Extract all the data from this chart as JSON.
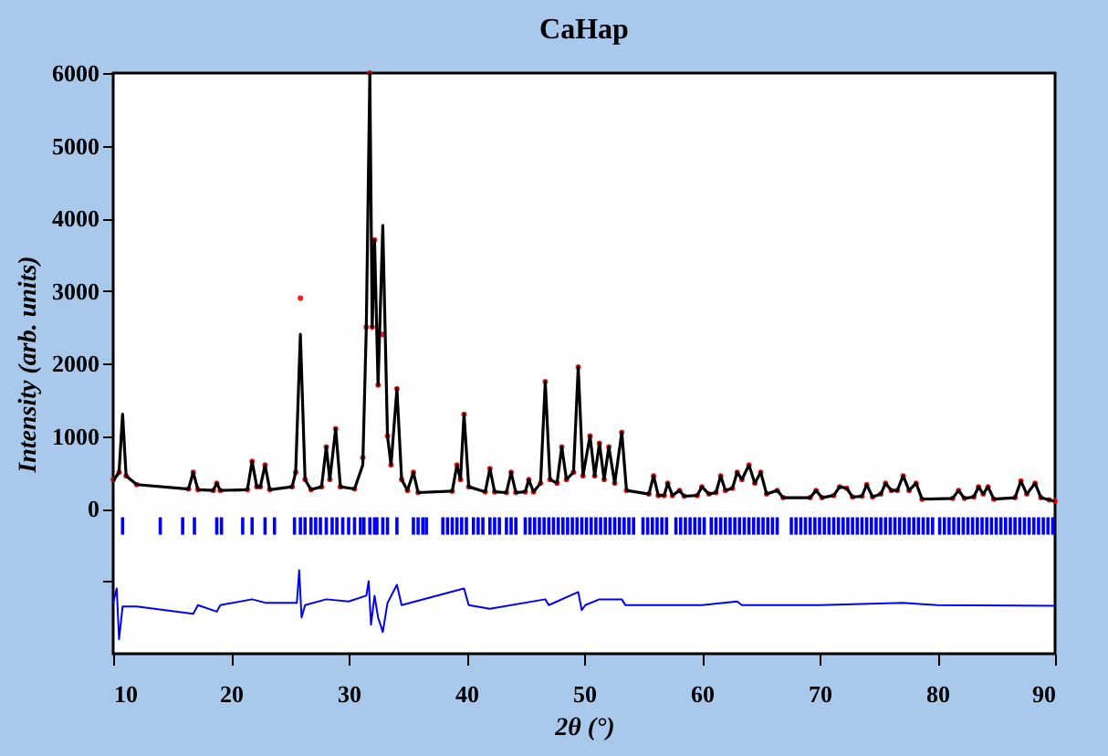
{
  "chart_data": {
    "type": "scatter",
    "title": "CaHap",
    "xlabel": "2θ (°)",
    "ylabel": "Intensity (arb. units)",
    "xlim": [
      10,
      90
    ],
    "xticks": [
      10,
      20,
      30,
      40,
      50,
      60,
      70,
      80,
      90
    ],
    "ylim": [
      -2000,
      6000
    ],
    "yticks": [
      {
        "value": -1000,
        "label": null
      },
      0,
      1000,
      2000,
      3000,
      4000,
      5000,
      6000
    ],
    "grid": false,
    "series": [
      {
        "color": "#ff0000",
        "marker": "circle",
        "x": [
          10,
          10.5,
          10.8,
          11.1,
          12,
          16.4,
          16.8,
          17.2,
          18.5,
          18.8,
          19.1,
          21.4,
          21.8,
          22.2,
          22.5,
          22.9,
          23.3,
          25.2,
          25.5,
          25.9,
          26.3,
          26.8,
          27.7,
          28.1,
          28.4,
          28.9,
          29.3,
          30.5,
          31.2,
          31.5,
          31.8,
          32.0,
          32.2,
          32.5,
          32.9,
          33.3,
          33.6,
          34.1,
          34.5,
          35.0,
          35.5,
          35.9,
          38.8,
          39.2,
          39.5,
          39.8,
          40.2,
          41.6,
          42.0,
          42.4,
          43.4,
          43.8,
          44.2,
          45.0,
          45.3,
          45.7,
          46.3,
          46.7,
          47.1,
          47.7,
          48.1,
          48.5,
          49.1,
          49.5,
          49.9,
          50.5,
          50.9,
          51.3,
          51.7,
          52.1,
          52.6,
          53.2,
          53.6,
          55.5,
          55.9,
          56.3,
          56.8,
          57.1,
          57.5,
          58.1,
          58.5,
          59.6,
          60.0,
          60.6,
          61.2,
          61.6,
          62.0,
          62.6,
          63.0,
          63.4,
          64.0,
          64.5,
          65.0,
          65.5,
          66.4,
          66.9,
          69.2,
          69.7,
          70.2,
          71.2,
          71.7,
          72.3,
          72.8,
          73.6,
          74.0,
          74.5,
          75.2,
          75.6,
          76.1,
          76.6,
          77.1,
          77.6,
          78.2,
          78.7,
          81.3,
          81.8,
          82.3,
          83.1,
          83.5,
          83.9,
          84.3,
          84.8,
          86.6,
          87.1,
          87.6,
          88.3,
          88.8,
          89.5,
          90
        ],
        "values": [
          400,
          500,
          1000,
          450,
          330,
          270,
          500,
          260,
          250,
          350,
          250,
          260,
          650,
          300,
          300,
          600,
          260,
          300,
          500,
          2900,
          400,
          260,
          300,
          850,
          400,
          1100,
          300,
          270,
          700,
          2500,
          6000,
          2500,
          3700,
          1700,
          2400,
          1000,
          600,
          1650,
          400,
          250,
          500,
          220,
          240,
          600,
          400,
          1300,
          300,
          230,
          550,
          230,
          220,
          500,
          220,
          230,
          400,
          230,
          350,
          1750,
          400,
          350,
          850,
          400,
          500,
          1950,
          450,
          1000,
          450,
          900,
          400,
          850,
          350,
          1050,
          250,
          200,
          450,
          180,
          180,
          350,
          180,
          250,
          170,
          180,
          300,
          200,
          220,
          450,
          250,
          280,
          500,
          400,
          600,
          350,
          500,
          200,
          250,
          150,
          150,
          250,
          150,
          180,
          300,
          280,
          160,
          170,
          330,
          160,
          200,
          350,
          250,
          250,
          450,
          250,
          350,
          130,
          140,
          250,
          140,
          160,
          300,
          200,
          300,
          130,
          150,
          380,
          200,
          350,
          150,
          120,
          100
        ]
      },
      {
        "type": "line",
        "color": "#000000",
        "x": [
          10,
          10.5,
          10.8,
          11.1,
          12,
          16.4,
          16.8,
          17.2,
          18.5,
          18.8,
          19.1,
          21.4,
          21.8,
          22.2,
          22.5,
          22.9,
          23.3,
          25.2,
          25.5,
          25.9,
          26.3,
          26.8,
          27.7,
          28.1,
          28.4,
          28.9,
          29.3,
          30.5,
          31.2,
          31.5,
          31.8,
          32.0,
          32.2,
          32.5,
          32.9,
          33.3,
          33.6,
          34.1,
          34.5,
          35.0,
          35.5,
          35.9,
          38.8,
          39.2,
          39.5,
          39.8,
          40.2,
          41.6,
          42.0,
          42.4,
          43.4,
          43.8,
          44.2,
          45.0,
          45.3,
          45.7,
          46.3,
          46.7,
          47.1,
          47.7,
          48.1,
          48.5,
          49.1,
          49.5,
          49.9,
          50.5,
          50.9,
          51.3,
          51.7,
          52.1,
          52.6,
          53.2,
          53.6,
          55.5,
          55.9,
          56.3,
          56.8,
          57.1,
          57.5,
          58.1,
          58.5,
          59.6,
          60.0,
          60.6,
          61.2,
          61.6,
          62.0,
          62.6,
          63.0,
          63.4,
          64.0,
          64.5,
          65.0,
          65.5,
          66.4,
          66.9,
          69.2,
          69.7,
          70.2,
          71.2,
          71.7,
          72.3,
          72.8,
          73.6,
          74.0,
          74.5,
          75.2,
          75.6,
          76.1,
          76.6,
          77.1,
          77.6,
          78.2,
          78.7,
          81.3,
          81.8,
          82.3,
          83.1,
          83.5,
          83.9,
          84.3,
          84.8,
          86.6,
          87.1,
          87.6,
          88.3,
          88.8,
          89.5,
          90
        ],
        "values": [
          380,
          500,
          1300,
          450,
          330,
          270,
          500,
          260,
          250,
          350,
          250,
          260,
          650,
          300,
          300,
          600,
          260,
          300,
          500,
          2400,
          400,
          260,
          300,
          850,
          400,
          1100,
          300,
          270,
          600,
          2500,
          6000,
          2500,
          3700,
          1700,
          3900,
          1000,
          600,
          1650,
          400,
          250,
          500,
          220,
          240,
          600,
          400,
          1300,
          300,
          230,
          550,
          230,
          220,
          500,
          220,
          230,
          400,
          230,
          350,
          1750,
          400,
          350,
          850,
          400,
          500,
          1950,
          450,
          1000,
          450,
          900,
          400,
          850,
          350,
          1050,
          250,
          200,
          450,
          180,
          180,
          350,
          180,
          250,
          170,
          180,
          300,
          200,
          220,
          450,
          250,
          280,
          500,
          400,
          600,
          350,
          500,
          200,
          250,
          150,
          150,
          250,
          150,
          180,
          300,
          280,
          160,
          170,
          330,
          160,
          200,
          350,
          250,
          250,
          450,
          250,
          350,
          130,
          140,
          250,
          140,
          160,
          300,
          200,
          300,
          130,
          150,
          380,
          200,
          350,
          150,
          120,
          100
        ]
      },
      {
        "type": "bar",
        "color": "#0000ff",
        "base": [
          -360,
          -360,
          -360,
          -360,
          -360,
          -360,
          -360,
          -360,
          -360,
          -360,
          -360,
          -360,
          -360,
          -360,
          -360,
          -360,
          -360,
          -360,
          -360,
          -360,
          -360,
          -360,
          -360,
          -360,
          -360,
          -360,
          -360,
          -360,
          -360,
          -360,
          -360,
          -360,
          -360,
          -360,
          -360,
          -360,
          -360,
          -360,
          -360,
          -360,
          -360,
          -360,
          -360,
          -360,
          -360,
          -360,
          -360,
          -360,
          -360,
          -360,
          -360,
          -360,
          -360,
          -360,
          -360,
          -360,
          -360,
          -360,
          -360,
          -360,
          -360,
          -360,
          -360,
          -360,
          -360,
          -360,
          -360,
          -360,
          -360,
          -360,
          -360,
          -360,
          -360,
          -360,
          -360,
          -360,
          -360,
          -360,
          -360,
          -360,
          -360,
          -360,
          -360,
          -360,
          -360,
          -360,
          -360,
          -360,
          -360,
          -360,
          -360,
          -360,
          -360,
          -360,
          -360,
          -360,
          -360,
          -360,
          -360,
          -360,
          -360,
          -360,
          -360,
          -360,
          -360,
          -360,
          -360,
          -360,
          -360,
          -360,
          -360,
          -360,
          -360,
          -360,
          -360,
          -360,
          -360,
          -360,
          -360,
          -360,
          -360,
          -360,
          -360,
          -360,
          -360,
          -360,
          -360,
          -360,
          -360,
          -360,
          -360,
          -360,
          -360,
          -360,
          -360,
          -360,
          -360,
          -360,
          -360,
          -360,
          -360,
          -360,
          -360,
          -360,
          -360,
          -360,
          -360,
          -360,
          -360,
          -360,
          -360,
          -360,
          -360,
          -360,
          -360,
          -360,
          -360
        ],
        "x": [
          10.8,
          14.0,
          15.9,
          16.9,
          18.8,
          19.2,
          21.0,
          21.8,
          22.9,
          23.7,
          25.4,
          25.9,
          26.3,
          26.8,
          27.2,
          27.6,
          28.1,
          28.6,
          29.0,
          29.5,
          30.0,
          30.5,
          31.0,
          31.3,
          31.8,
          32.2,
          32.4,
          32.9,
          33.3,
          34.1,
          35.5,
          35.9,
          36.3,
          36.6,
          38.0,
          38.4,
          38.8,
          39.2,
          39.6,
          40.0,
          40.6,
          41.0,
          41.4,
          42.0,
          42.4,
          42.8,
          43.4,
          43.8,
          44.2,
          45.0,
          45.4,
          45.8,
          46.2,
          46.6,
          47.0,
          47.4,
          47.8,
          48.2,
          48.6,
          49.0,
          49.4,
          49.8,
          50.2,
          50.6,
          51.0,
          51.4,
          51.8,
          52.2,
          52.6,
          53.0,
          53.4,
          53.8,
          54.2,
          55.0,
          55.4,
          55.8,
          56.2,
          56.6,
          57.0,
          57.8,
          58.2,
          58.6,
          59.0,
          59.4,
          59.8,
          60.2,
          60.8,
          61.2,
          61.6,
          62.0,
          62.4,
          62.8,
          63.2,
          63.6,
          64.0,
          64.4,
          64.8,
          65.2,
          65.6,
          66.0,
          66.4,
          67.6,
          68.0,
          68.4,
          68.8,
          69.2,
          69.6,
          70.0,
          70.4,
          70.8,
          71.2,
          71.6,
          72.0,
          72.4,
          72.8,
          73.2,
          73.6,
          74.0,
          74.4,
          74.8,
          75.2,
          75.6,
          76.0,
          76.4,
          76.8,
          77.2,
          77.6,
          78.0,
          78.4,
          78.8,
          79.2,
          79.6,
          80.2,
          80.6,
          81.0,
          81.4,
          81.8,
          82.2,
          82.6,
          83.0,
          83.4,
          83.8,
          84.2,
          84.6,
          85.0,
          85.4,
          85.8,
          86.2,
          86.6,
          87.0,
          87.4,
          87.8,
          88.2,
          88.6,
          89.0,
          89.4,
          89.8
        ],
        "values": [
          240,
          240,
          240,
          240,
          240,
          240,
          240,
          240,
          240,
          240,
          240,
          240,
          240,
          240,
          240,
          240,
          240,
          240,
          240,
          240,
          240,
          240,
          240,
          240,
          240,
          240,
          240,
          240,
          240,
          240,
          240,
          240,
          240,
          240,
          240,
          240,
          240,
          240,
          240,
          240,
          240,
          240,
          240,
          240,
          240,
          240,
          240,
          240,
          240,
          240,
          240,
          240,
          240,
          240,
          240,
          240,
          240,
          240,
          240,
          240,
          240,
          240,
          240,
          240,
          240,
          240,
          240,
          240,
          240,
          240,
          240,
          240,
          240,
          240,
          240,
          240,
          240,
          240,
          240,
          240,
          240,
          240,
          240,
          240,
          240,
          240,
          240,
          240,
          240,
          240,
          240,
          240,
          240,
          240,
          240,
          240,
          240,
          240,
          240,
          240,
          240,
          240,
          240,
          240,
          240,
          240,
          240,
          240,
          240,
          240,
          240,
          240,
          240,
          240,
          240,
          240,
          240,
          240,
          240,
          240,
          240,
          240,
          240,
          240,
          240,
          240,
          240,
          240,
          240,
          240,
          240,
          240,
          240,
          240,
          240,
          240,
          240,
          240,
          240,
          240,
          240,
          240,
          240,
          240,
          240,
          240,
          240,
          240,
          240,
          240,
          240,
          240,
          240,
          240,
          240,
          240,
          240
        ]
      },
      {
        "type": "line",
        "color": "#0000ff",
        "x": [
          10,
          10.3,
          10.5,
          10.8,
          12,
          16.8,
          17.2,
          18.8,
          19.1,
          21.8,
          23,
          25.6,
          25.8,
          26.0,
          26.3,
          28.1,
          30,
          31.5,
          31.7,
          31.9,
          32.2,
          32.5,
          32.9,
          33.3,
          34.1,
          34.5,
          39.8,
          40.2,
          42,
          46.7,
          47,
          49.5,
          49.8,
          50.1,
          51.3,
          53.2,
          53.5,
          60,
          63,
          63.4,
          70,
          77.1,
          80,
          90
        ],
        "values": [
          -1300,
          -1100,
          -1800,
          -1350,
          -1350,
          -1450,
          -1330,
          -1420,
          -1330,
          -1250,
          -1300,
          -1300,
          -850,
          -1500,
          -1330,
          -1250,
          -1280,
          -1200,
          -1000,
          -1600,
          -1200,
          -1500,
          -1700,
          -1300,
          -1050,
          -1330,
          -1100,
          -1330,
          -1380,
          -1250,
          -1330,
          -1150,
          -1400,
          -1330,
          -1250,
          -1250,
          -1330,
          -1330,
          -1280,
          -1330,
          -1330,
          -1300,
          -1330,
          -1340
        ]
      }
    ]
  }
}
